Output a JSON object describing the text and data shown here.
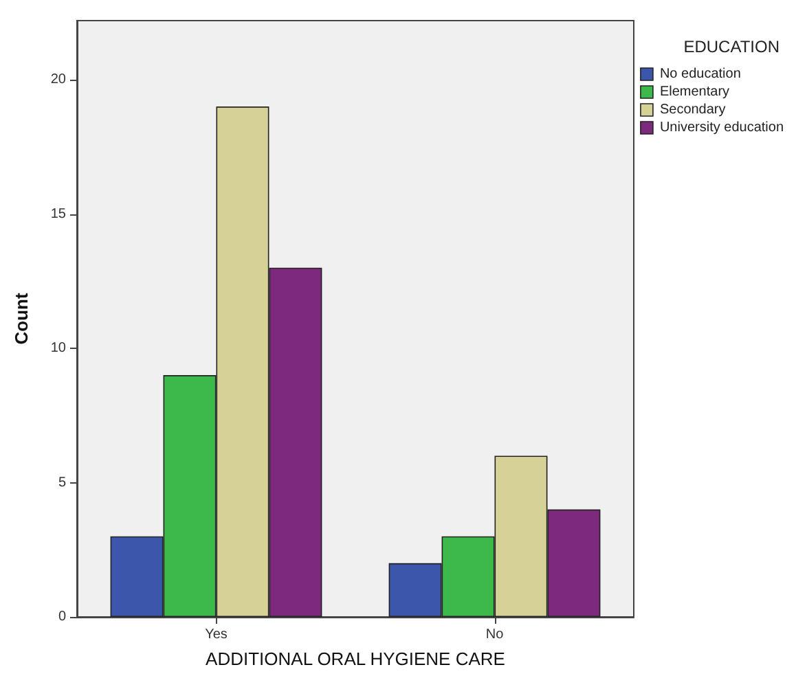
{
  "chart_data": {
    "type": "bar",
    "xlabel": "ADDITIONAL ORAL HYGIENE CARE",
    "ylabel": "Count",
    "legend_title": "EDUCATION",
    "categories": [
      "Yes",
      "No"
    ],
    "series": [
      {
        "name": "No education",
        "color": "#3c56ab",
        "values": [
          3,
          2
        ]
      },
      {
        "name": "Elementary",
        "color": "#3cb94a",
        "values": [
          9,
          3
        ]
      },
      {
        "name": "Secondary",
        "color": "#d6d196",
        "values": [
          19,
          6
        ]
      },
      {
        "name": "University education",
        "color": "#7d2a7e",
        "values": [
          13,
          4
        ]
      }
    ],
    "ylim": [
      0,
      22.2
    ],
    "yticks": [
      0,
      5,
      10,
      15,
      20
    ],
    "grid": false,
    "legend": "top right"
  }
}
